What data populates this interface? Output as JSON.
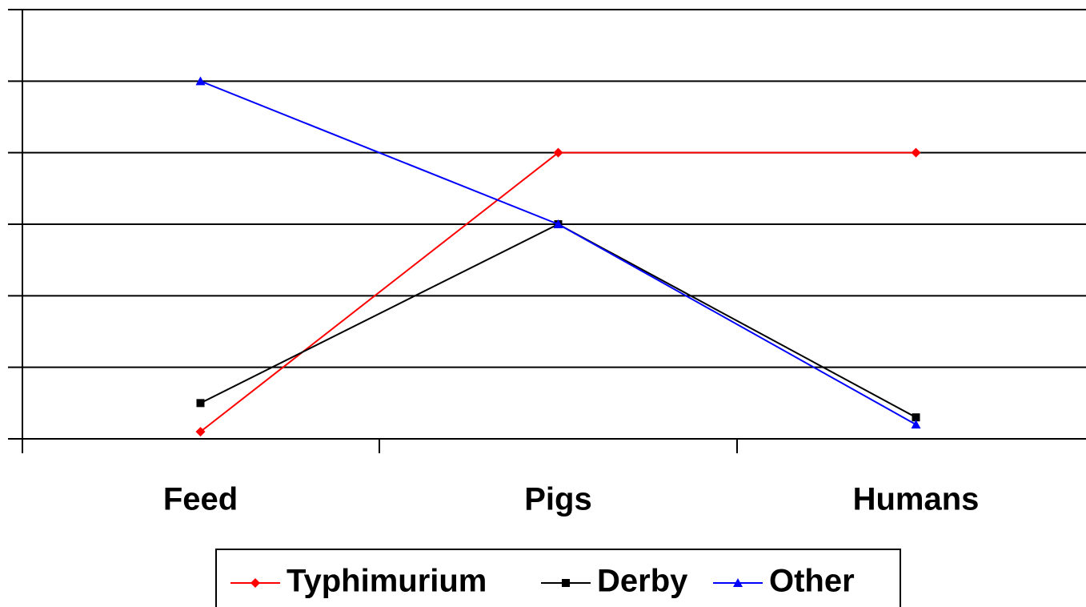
{
  "chart_data": {
    "type": "line",
    "categories": [
      "Feed",
      "Pigs",
      "Humans"
    ],
    "series": [
      {
        "name": "Typhimurium",
        "color": "#ff0000",
        "marker": "diamond",
        "values": [
          0.1,
          4,
          4
        ]
      },
      {
        "name": "Derby",
        "color": "#000000",
        "marker": "square",
        "values": [
          0.5,
          3,
          0.3
        ]
      },
      {
        "name": "Other",
        "color": "#0000ff",
        "marker": "triangle",
        "values": [
          5,
          3,
          0.2
        ]
      }
    ],
    "ylim": [
      0,
      6
    ],
    "yticks": [
      0,
      1,
      2,
      3,
      4,
      5,
      6
    ],
    "grid": true,
    "legend": "bottom"
  }
}
